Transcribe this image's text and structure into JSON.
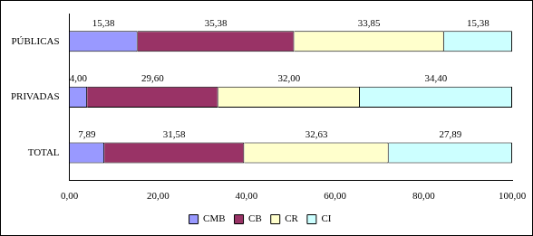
{
  "chart_data": {
    "type": "bar",
    "orientation": "horizontal",
    "stacked": true,
    "categories": [
      "PÚBLICAS",
      "PRIVADAS",
      "TOTAL"
    ],
    "series": [
      {
        "name": "CMB",
        "color": "#9999ff",
        "values": [
          15.38,
          4.0,
          7.89
        ],
        "value_labels": [
          "15,38",
          "4,00",
          "7,89"
        ]
      },
      {
        "name": "CB",
        "color": "#993366",
        "values": [
          35.38,
          29.6,
          31.58
        ],
        "value_labels": [
          "35,38",
          "29,60",
          "31,58"
        ]
      },
      {
        "name": "CR",
        "color": "#ffffcc",
        "values": [
          33.85,
          32.0,
          32.63
        ],
        "value_labels": [
          "33,85",
          "32,00",
          "32,63"
        ]
      },
      {
        "name": "CI",
        "color": "#ccffff",
        "values": [
          15.38,
          34.4,
          27.89
        ],
        "value_labels": [
          "15,38",
          "34,40",
          "27,89"
        ]
      }
    ],
    "xlim": [
      0,
      100
    ],
    "xticks": [
      {
        "value": 0,
        "label": "0,00"
      },
      {
        "value": 20,
        "label": "20,00"
      },
      {
        "value": 40,
        "label": "40,00"
      },
      {
        "value": 60,
        "label": "60,00"
      },
      {
        "value": 80,
        "label": "80,00"
      },
      {
        "value": 100,
        "label": "100,00"
      }
    ],
    "grid": false,
    "legend": "bottom",
    "data_labels": true
  }
}
